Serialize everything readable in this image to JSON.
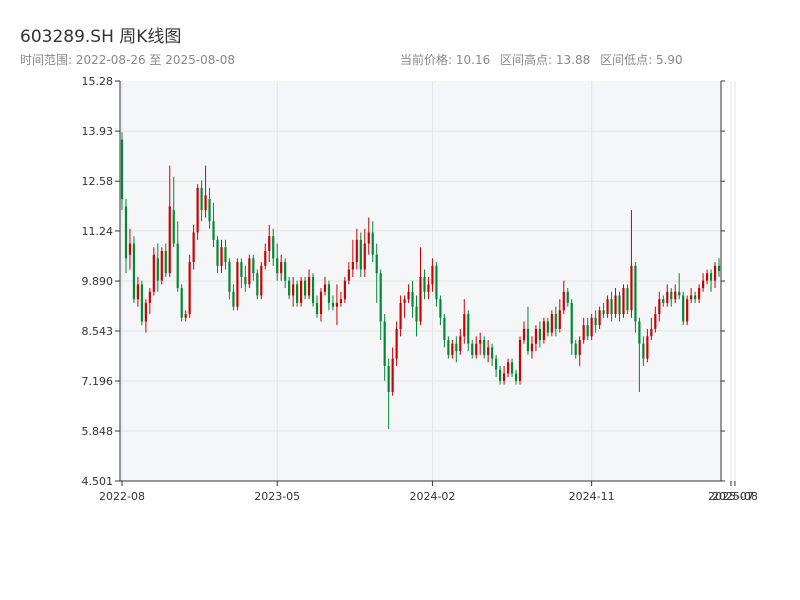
{
  "header": {
    "title": "603289.SH 周K线图",
    "date_range": "时间范围: 2022-08-26 至 2025-08-08",
    "current_price": "当前价格: 10.16",
    "period_high": "区间高点: 13.88",
    "period_low": "区间低点: 5.90"
  },
  "colors": {
    "up": "#cc0000",
    "down": "#008833",
    "plot_bg": "#f5f6f8",
    "grid": "#e2e4e8",
    "axis": "#333333"
  },
  "chart_data": {
    "type": "candlestick",
    "ylim": [
      4.501,
      15.28
    ],
    "y_ticks": [
      "15.28",
      "13.93",
      "12.58",
      "11.24",
      "9.890",
      "8.543",
      "7.196",
      "5.848",
      "4.501"
    ],
    "x_ticks": [
      {
        "label": "2022-08",
        "index": 0
      },
      {
        "label": "2023-05",
        "index": 39
      },
      {
        "label": "2024-02",
        "index": 78
      },
      {
        "label": "2024-11",
        "index": 118
      },
      {
        "label": "2025-07",
        "index": 153
      },
      {
        "label": "2025-08",
        "index": 154
      }
    ],
    "candles": [
      [
        13.7,
        12.1,
        13.9,
        11.8
      ],
      [
        11.9,
        10.5,
        12.1,
        10.1
      ],
      [
        10.6,
        10.9,
        11.3,
        10.2
      ],
      [
        10.9,
        9.4,
        11.1,
        9.3
      ],
      [
        9.4,
        9.8,
        10.0,
        9.2
      ],
      [
        9.8,
        8.8,
        9.9,
        8.7
      ],
      [
        8.8,
        9.3,
        9.4,
        8.5
      ],
      [
        9.3,
        9.6,
        9.7,
        9.0
      ],
      [
        9.6,
        10.6,
        10.8,
        9.5
      ],
      [
        10.5,
        9.9,
        10.9,
        9.6
      ],
      [
        9.9,
        10.7,
        10.8,
        9.8
      ],
      [
        10.7,
        10.1,
        10.9,
        10.0
      ],
      [
        10.1,
        11.9,
        13.0,
        10.0
      ],
      [
        11.8,
        10.9,
        12.7,
        10.8
      ],
      [
        10.9,
        9.7,
        11.5,
        9.6
      ],
      [
        9.7,
        8.9,
        9.8,
        8.8
      ],
      [
        8.9,
        9.0,
        9.1,
        8.8
      ],
      [
        9.0,
        10.4,
        10.6,
        8.9
      ],
      [
        10.4,
        11.2,
        11.4,
        10.2
      ],
      [
        11.2,
        12.4,
        12.5,
        11.0
      ],
      [
        12.4,
        11.8,
        12.6,
        11.5
      ],
      [
        11.8,
        12.2,
        13.0,
        11.6
      ],
      [
        12.1,
        11.5,
        12.4,
        11.3
      ],
      [
        11.5,
        11.0,
        12.0,
        10.8
      ],
      [
        11.0,
        10.3,
        11.1,
        10.1
      ],
      [
        10.3,
        10.8,
        11.0,
        10.1
      ],
      [
        10.8,
        10.4,
        11.0,
        10.2
      ],
      [
        10.4,
        9.6,
        10.5,
        9.4
      ],
      [
        9.6,
        9.2,
        9.8,
        9.1
      ],
      [
        9.2,
        10.4,
        10.5,
        9.1
      ],
      [
        10.4,
        10.0,
        10.5,
        9.7
      ],
      [
        10.0,
        9.8,
        10.3,
        9.6
      ],
      [
        9.8,
        10.5,
        10.6,
        9.7
      ],
      [
        10.5,
        10.1,
        10.6,
        9.9
      ],
      [
        10.1,
        9.5,
        10.2,
        9.4
      ],
      [
        9.5,
        10.3,
        10.4,
        9.4
      ],
      [
        10.3,
        10.7,
        10.9,
        10.2
      ],
      [
        10.7,
        11.1,
        11.4,
        10.4
      ],
      [
        11.1,
        10.5,
        11.3,
        10.3
      ],
      [
        10.5,
        10.1,
        10.9,
        9.9
      ],
      [
        10.1,
        10.4,
        10.6,
        9.9
      ],
      [
        10.4,
        9.9,
        10.5,
        9.7
      ],
      [
        9.9,
        9.5,
        10.0,
        9.4
      ],
      [
        9.5,
        9.8,
        10.0,
        9.2
      ],
      [
        9.8,
        9.3,
        9.9,
        9.2
      ],
      [
        9.3,
        9.9,
        10.0,
        9.2
      ],
      [
        9.9,
        9.5,
        10.0,
        9.4
      ],
      [
        9.5,
        10.0,
        10.2,
        9.4
      ],
      [
        10.0,
        9.3,
        10.1,
        9.2
      ],
      [
        9.3,
        9.0,
        9.5,
        8.9
      ],
      [
        9.0,
        9.6,
        9.7,
        8.8
      ],
      [
        9.6,
        9.8,
        10.0,
        9.5
      ],
      [
        9.8,
        9.3,
        9.9,
        9.1
      ],
      [
        9.3,
        9.2,
        9.5,
        9.1
      ],
      [
        9.2,
        9.3,
        9.8,
        8.7
      ],
      [
        9.3,
        9.4,
        9.6,
        9.2
      ],
      [
        9.4,
        9.9,
        10.0,
        9.3
      ],
      [
        9.9,
        10.2,
        10.4,
        9.8
      ],
      [
        10.2,
        10.4,
        11.0,
        10.0
      ],
      [
        10.4,
        11.0,
        11.3,
        10.2
      ],
      [
        11.0,
        10.2,
        11.2,
        10.0
      ],
      [
        10.2,
        10.9,
        11.3,
        10.0
      ],
      [
        10.9,
        11.2,
        11.6,
        10.6
      ],
      [
        11.2,
        10.6,
        11.5,
        10.4
      ],
      [
        10.6,
        10.1,
        10.9,
        9.3
      ],
      [
        10.1,
        8.8,
        10.2,
        8.3
      ],
      [
        8.8,
        7.6,
        9.0,
        7.2
      ],
      [
        7.6,
        6.9,
        7.8,
        5.9
      ],
      [
        6.9,
        7.8,
        8.1,
        6.8
      ],
      [
        7.8,
        8.6,
        8.8,
        7.6
      ],
      [
        8.6,
        9.3,
        9.5,
        8.4
      ],
      [
        9.3,
        9.4,
        9.5,
        8.9
      ],
      [
        9.4,
        9.6,
        9.8,
        9.3
      ],
      [
        9.6,
        9.2,
        9.9,
        8.9
      ],
      [
        9.2,
        8.8,
        9.5,
        8.4
      ],
      [
        8.8,
        10.0,
        10.8,
        8.7
      ],
      [
        10.0,
        9.6,
        10.2,
        9.4
      ],
      [
        9.6,
        9.8,
        10.0,
        9.4
      ],
      [
        9.8,
        10.3,
        10.5,
        9.6
      ],
      [
        10.3,
        9.4,
        10.4,
        9.2
      ],
      [
        9.4,
        8.9,
        9.5,
        8.7
      ],
      [
        8.9,
        8.3,
        9.0,
        8.1
      ],
      [
        8.3,
        7.9,
        8.4,
        7.8
      ],
      [
        7.9,
        8.2,
        8.3,
        7.8
      ],
      [
        8.2,
        8.0,
        8.4,
        7.7
      ],
      [
        8.0,
        8.4,
        8.6,
        7.9
      ],
      [
        8.4,
        9.0,
        9.4,
        8.2
      ],
      [
        9.0,
        8.2,
        9.1,
        8.0
      ],
      [
        8.2,
        7.9,
        8.3,
        7.8
      ],
      [
        7.9,
        8.2,
        8.4,
        7.8
      ],
      [
        8.2,
        8.3,
        8.5,
        7.9
      ],
      [
        8.3,
        7.9,
        8.4,
        7.8
      ],
      [
        7.9,
        8.1,
        8.3,
        7.7
      ],
      [
        8.1,
        7.8,
        8.2,
        7.6
      ],
      [
        7.8,
        7.5,
        7.9,
        7.3
      ],
      [
        7.5,
        7.2,
        7.6,
        7.1
      ],
      [
        7.2,
        7.4,
        7.6,
        7.1
      ],
      [
        7.4,
        7.7,
        7.8,
        7.3
      ],
      [
        7.7,
        7.4,
        7.8,
        7.3
      ],
      [
        7.4,
        7.2,
        7.5,
        7.1
      ],
      [
        7.2,
        8.3,
        8.4,
        7.1
      ],
      [
        8.3,
        8.6,
        8.8,
        8.2
      ],
      [
        8.6,
        8.0,
        9.2,
        7.9
      ],
      [
        8.0,
        8.2,
        8.4,
        7.8
      ],
      [
        8.2,
        8.6,
        8.7,
        8.0
      ],
      [
        8.6,
        8.3,
        8.8,
        8.1
      ],
      [
        8.3,
        8.8,
        8.9,
        8.2
      ],
      [
        8.8,
        8.5,
        8.9,
        8.4
      ],
      [
        8.5,
        9.0,
        9.1,
        8.4
      ],
      [
        9.0,
        8.6,
        9.2,
        8.4
      ],
      [
        8.6,
        9.1,
        9.4,
        8.5
      ],
      [
        9.1,
        9.6,
        9.9,
        9.0
      ],
      [
        9.6,
        9.3,
        9.7,
        9.2
      ],
      [
        9.3,
        8.2,
        9.4,
        7.9
      ],
      [
        8.2,
        7.9,
        8.3,
        7.8
      ],
      [
        7.9,
        8.3,
        8.4,
        7.6
      ],
      [
        8.3,
        8.7,
        8.9,
        8.2
      ],
      [
        8.7,
        8.4,
        8.9,
        8.3
      ],
      [
        8.4,
        8.9,
        9.0,
        8.3
      ],
      [
        8.9,
        8.7,
        9.1,
        8.5
      ],
      [
        8.7,
        9.1,
        9.2,
        8.6
      ],
      [
        9.1,
        9.0,
        9.3,
        8.9
      ],
      [
        9.0,
        9.4,
        9.5,
        8.9
      ],
      [
        9.4,
        9.0,
        9.6,
        8.8
      ],
      [
        9.0,
        9.5,
        9.7,
        8.9
      ],
      [
        9.5,
        9.0,
        9.6,
        8.8
      ],
      [
        9.0,
        9.7,
        9.8,
        8.9
      ],
      [
        9.7,
        9.1,
        9.8,
        9.0
      ],
      [
        9.1,
        10.3,
        11.8,
        8.9
      ],
      [
        10.3,
        8.8,
        10.4,
        8.5
      ],
      [
        8.8,
        8.2,
        8.9,
        6.9
      ],
      [
        8.2,
        7.8,
        8.4,
        7.6
      ],
      [
        7.8,
        8.4,
        8.6,
        7.7
      ],
      [
        8.4,
        8.6,
        8.9,
        8.3
      ],
      [
        8.6,
        9.0,
        9.2,
        8.5
      ],
      [
        9.0,
        9.4,
        9.6,
        8.8
      ],
      [
        9.4,
        9.3,
        9.5,
        9.2
      ],
      [
        9.3,
        9.6,
        9.8,
        9.2
      ],
      [
        9.6,
        9.4,
        9.7,
        9.2
      ],
      [
        9.4,
        9.6,
        9.8,
        9.3
      ],
      [
        9.6,
        9.5,
        10.1,
        9.4
      ],
      [
        9.5,
        8.8,
        9.6,
        8.7
      ],
      [
        8.8,
        9.4,
        9.5,
        8.7
      ],
      [
        9.4,
        9.5,
        9.7,
        9.3
      ],
      [
        9.5,
        9.4,
        9.6,
        9.3
      ],
      [
        9.4,
        9.7,
        9.8,
        9.3
      ],
      [
        9.7,
        9.9,
        10.1,
        9.6
      ],
      [
        9.9,
        10.1,
        10.2,
        9.8
      ],
      [
        10.1,
        9.9,
        10.2,
        9.6
      ],
      [
        9.9,
        10.3,
        10.4,
        9.7
      ],
      [
        10.3,
        10.16,
        10.5,
        10.0
      ]
    ]
  }
}
